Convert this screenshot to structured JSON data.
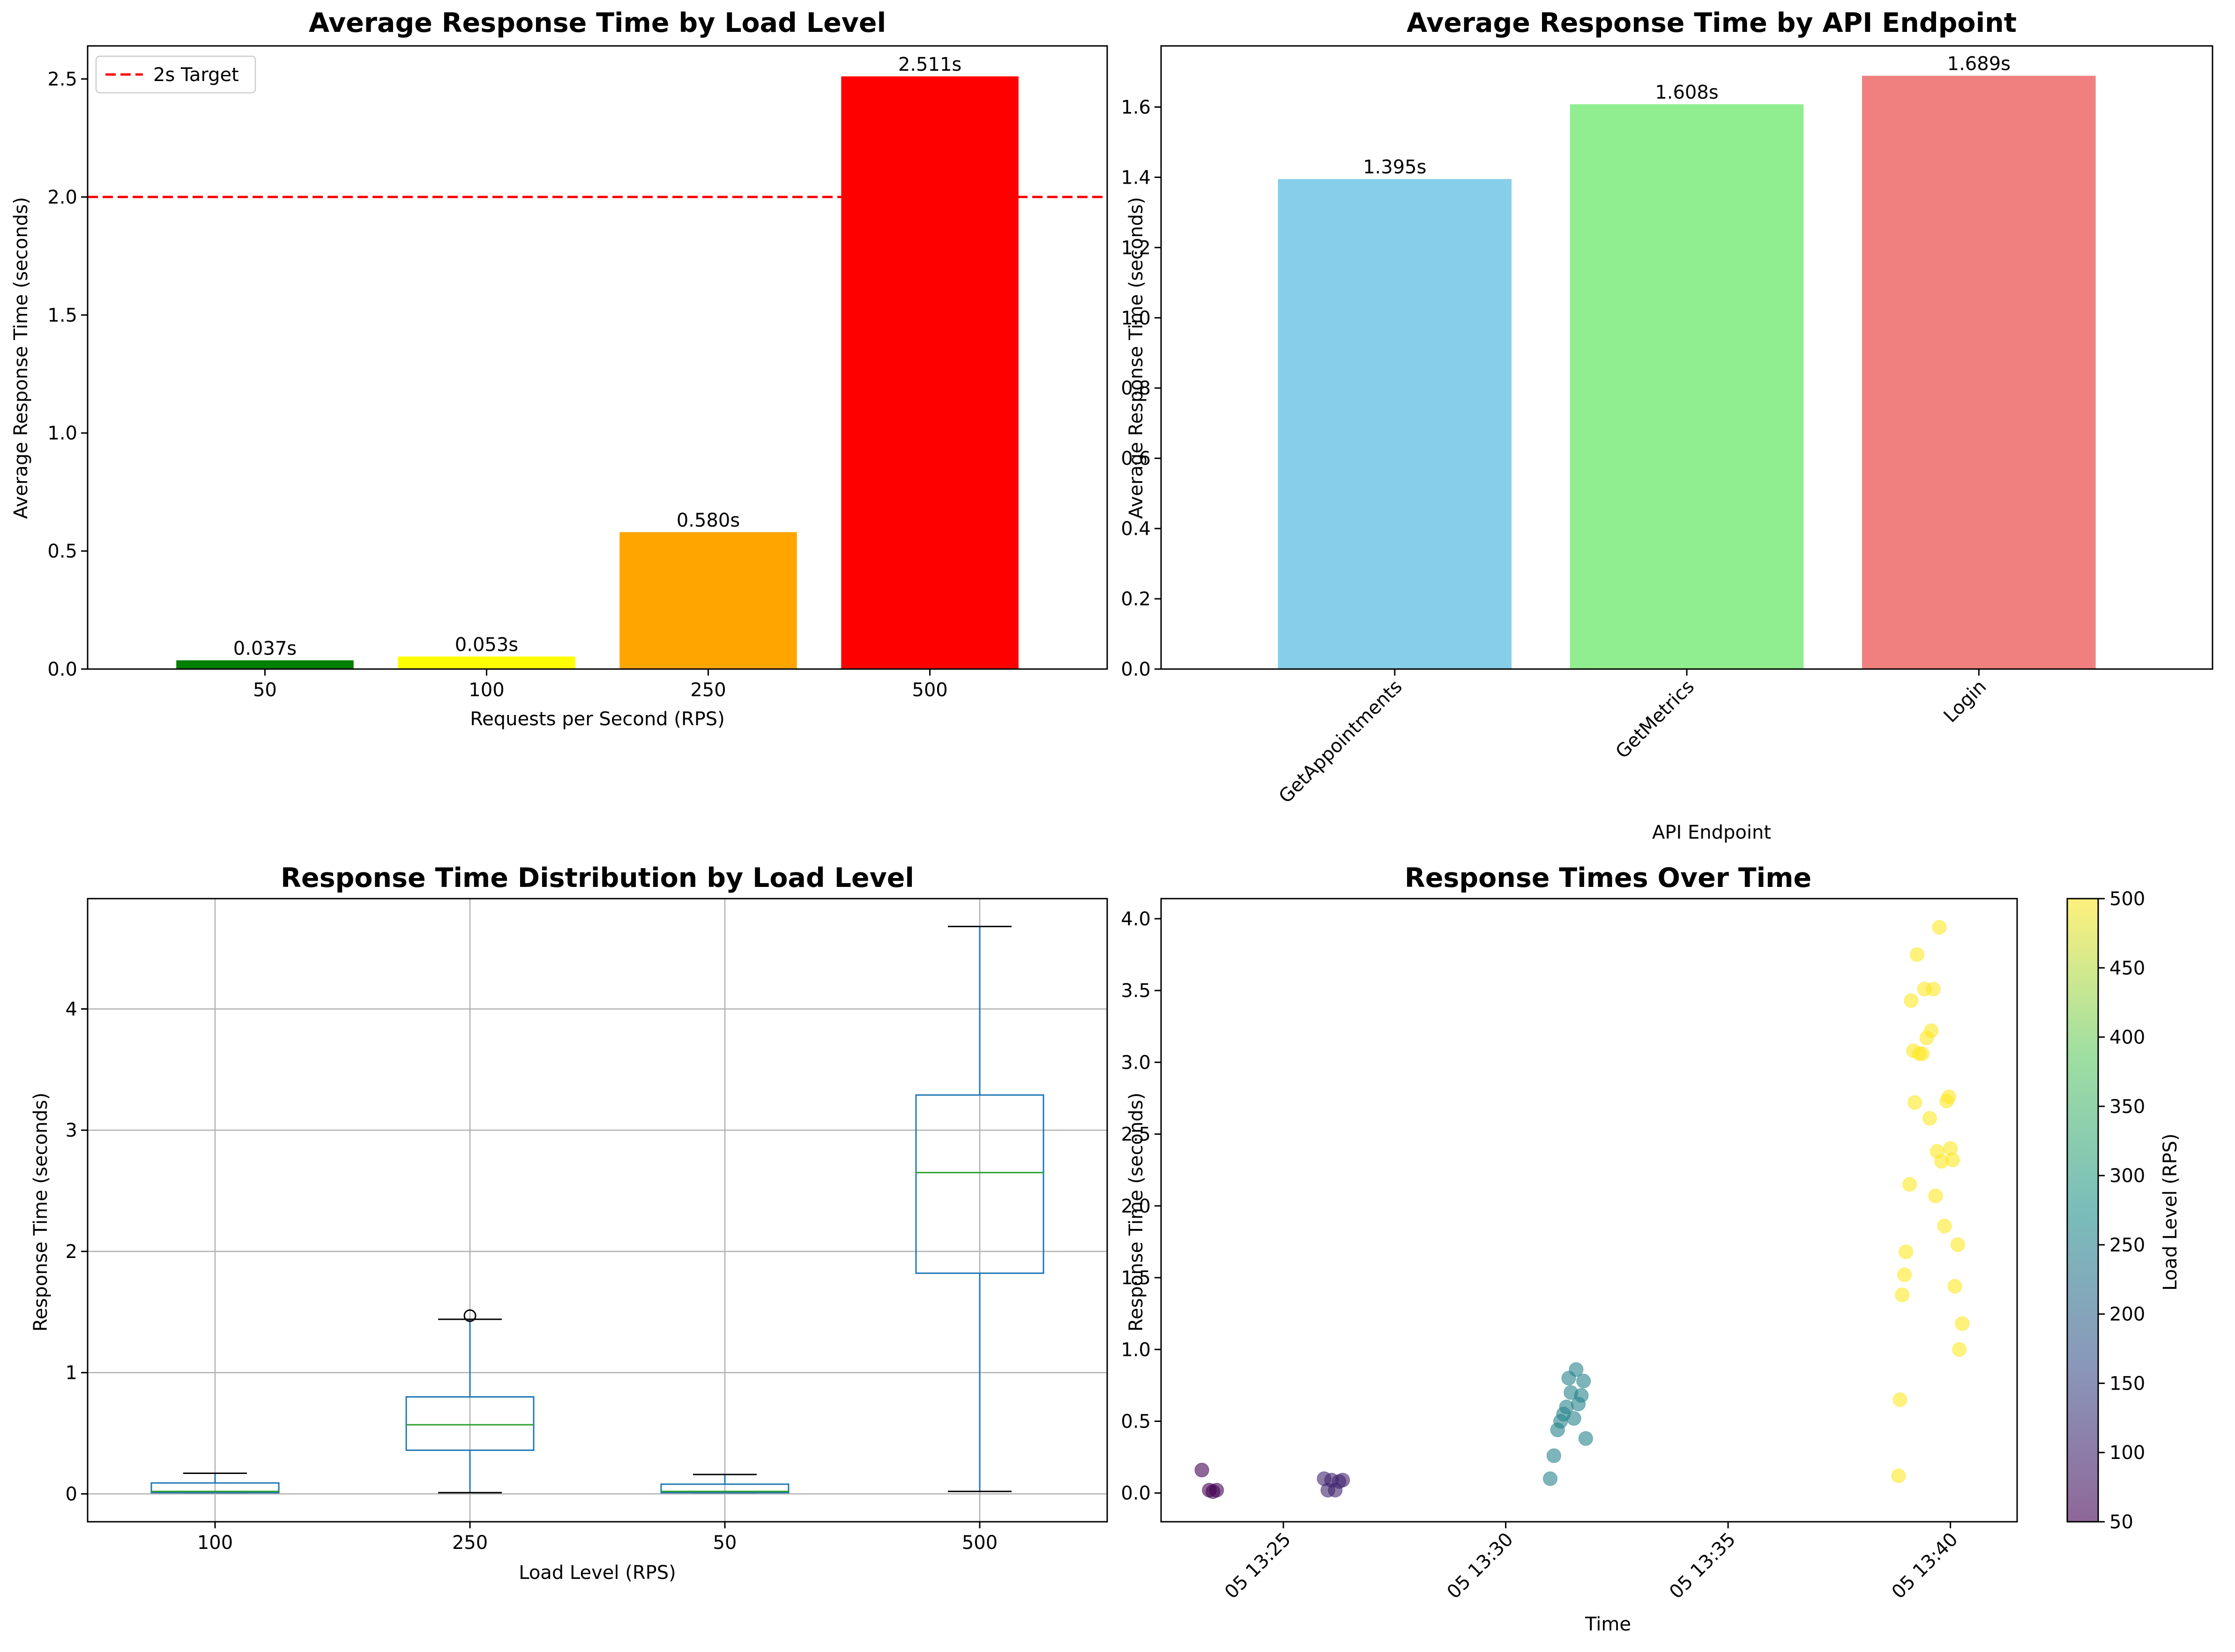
{
  "chart_data": [
    {
      "type": "bar",
      "title": "Average Response Time by Load Level",
      "xlabel": "Requests per Second (RPS)",
      "ylabel": "Average Response Time (seconds)",
      "categories": [
        "50",
        "100",
        "250",
        "500"
      ],
      "values": [
        0.037,
        0.053,
        0.58,
        2.511
      ],
      "value_labels": [
        "0.037s",
        "0.053s",
        "0.580s",
        "2.511s"
      ],
      "colors": [
        "#008000",
        "#ffff00",
        "#ffa500",
        "#ff0000"
      ],
      "ylim": [
        0,
        2.64
      ],
      "yticks": [
        "0.0",
        "0.5",
        "1.0",
        "1.5",
        "2.0",
        "2.5"
      ],
      "reference_line": {
        "value": 2.0,
        "label": "2s Target",
        "color": "#ff0000",
        "style": "dashed"
      },
      "legend_position": "top-left",
      "grid": false
    },
    {
      "type": "bar",
      "title": "Average Response Time by API Endpoint",
      "xlabel": "API Endpoint",
      "ylabel": "Average Response Time (seconds)",
      "categories": [
        "GetAppointments",
        "GetMetrics",
        "Login"
      ],
      "values": [
        1.395,
        1.608,
        1.689
      ],
      "value_labels": [
        "1.395s",
        "1.608s",
        "1.689s"
      ],
      "colors": [
        "#87ceeb",
        "#90ee90",
        "#f08080"
      ],
      "ylim": [
        0,
        1.774
      ],
      "yticks": [
        "0.0",
        "0.2",
        "0.4",
        "0.6",
        "0.8",
        "1.0",
        "1.2",
        "1.4",
        "1.6"
      ],
      "xtick_rotation": 45,
      "grid": false
    },
    {
      "type": "box",
      "title": "Response Time Distribution by Load Level",
      "xlabel": "Load Level (RPS)",
      "ylabel": "Response Time (seconds)",
      "categories": [
        "100",
        "250",
        "50",
        "500"
      ],
      "boxes": [
        {
          "whisker_low": 0.01,
          "q1": 0.01,
          "median": 0.02,
          "q3": 0.09,
          "whisker_high": 0.17,
          "outliers": []
        },
        {
          "whisker_low": 0.01,
          "q1": 0.36,
          "median": 0.57,
          "q3": 0.8,
          "whisker_high": 1.44,
          "outliers": [
            1.47
          ]
        },
        {
          "whisker_low": 0.01,
          "q1": 0.01,
          "median": 0.02,
          "q3": 0.08,
          "whisker_high": 0.16,
          "outliers": []
        },
        {
          "whisker_low": 0.02,
          "q1": 1.82,
          "median": 2.65,
          "q3": 3.29,
          "whisker_high": 4.68,
          "outliers": []
        }
      ],
      "ylim": [
        -0.23,
        4.91
      ],
      "yticks": [
        "0",
        "1",
        "2",
        "3",
        "4"
      ],
      "grid": true
    },
    {
      "type": "scatter",
      "title": "Response Times Over Time",
      "xlabel": "Time",
      "ylabel": "Response Time (seconds)",
      "xticks": [
        "05 13:25",
        "05 13:30",
        "05 13:35",
        "05 13:40"
      ],
      "yticks": [
        "0.0",
        "0.5",
        "1.0",
        "1.5",
        "2.0",
        "2.5",
        "3.0",
        "3.5",
        "4.0"
      ],
      "ylim": [
        -0.2,
        4.14
      ],
      "colorbar": {
        "label": "Load Level (RPS)",
        "min": 50,
        "max": 500,
        "ticks": [
          "50",
          "100",
          "150",
          "200",
          "250",
          "300",
          "350",
          "400",
          "450",
          "500"
        ],
        "colormap": "viridis"
      },
      "points": [
        {
          "t": "13:23:10",
          "y": 0.16,
          "load": 50
        },
        {
          "t": "13:23:20",
          "y": 0.02,
          "load": 50
        },
        {
          "t": "13:23:25",
          "y": 0.01,
          "load": 50
        },
        {
          "t": "13:23:30",
          "y": 0.02,
          "load": 50
        },
        {
          "t": "13:25:55",
          "y": 0.1,
          "load": 100
        },
        {
          "t": "13:26:00",
          "y": 0.02,
          "load": 100
        },
        {
          "t": "13:26:05",
          "y": 0.09,
          "load": 100
        },
        {
          "t": "13:26:10",
          "y": 0.02,
          "load": 100
        },
        {
          "t": "13:26:15",
          "y": 0.08,
          "load": 100
        },
        {
          "t": "13:26:20",
          "y": 0.09,
          "load": 100
        },
        {
          "t": "13:31:00",
          "y": 0.1,
          "load": 250
        },
        {
          "t": "13:31:05",
          "y": 0.26,
          "load": 250
        },
        {
          "t": "13:31:10",
          "y": 0.44,
          "load": 250
        },
        {
          "t": "13:31:14",
          "y": 0.5,
          "load": 250
        },
        {
          "t": "13:31:18",
          "y": 0.55,
          "load": 250
        },
        {
          "t": "13:31:22",
          "y": 0.6,
          "load": 250
        },
        {
          "t": "13:31:25",
          "y": 0.8,
          "load": 250
        },
        {
          "t": "13:31:28",
          "y": 0.7,
          "load": 250
        },
        {
          "t": "13:31:32",
          "y": 0.52,
          "load": 250
        },
        {
          "t": "13:31:35",
          "y": 0.86,
          "load": 250
        },
        {
          "t": "13:31:38",
          "y": 0.62,
          "load": 250
        },
        {
          "t": "13:31:42",
          "y": 0.68,
          "load": 250
        },
        {
          "t": "13:31:45",
          "y": 0.78,
          "load": 250
        },
        {
          "t": "13:31:48",
          "y": 0.38,
          "load": 250
        },
        {
          "t": "13:38:50",
          "y": 0.12,
          "load": 500
        },
        {
          "t": "13:38:52",
          "y": 0.65,
          "load": 500
        },
        {
          "t": "13:38:55",
          "y": 1.38,
          "load": 500
        },
        {
          "t": "13:38:58",
          "y": 1.52,
          "load": 500
        },
        {
          "t": "13:39:00",
          "y": 1.68,
          "load": 500
        },
        {
          "t": "13:39:05",
          "y": 2.15,
          "load": 500
        },
        {
          "t": "13:39:07",
          "y": 3.43,
          "load": 500
        },
        {
          "t": "13:39:10",
          "y": 3.08,
          "load": 500
        },
        {
          "t": "13:39:12",
          "y": 2.72,
          "load": 500
        },
        {
          "t": "13:39:15",
          "y": 3.75,
          "load": 500
        },
        {
          "t": "13:39:18",
          "y": 3.06,
          "load": 500
        },
        {
          "t": "13:39:22",
          "y": 3.06,
          "load": 500
        },
        {
          "t": "13:39:25",
          "y": 3.51,
          "load": 500
        },
        {
          "t": "13:39:28",
          "y": 3.17,
          "load": 500
        },
        {
          "t": "13:39:32",
          "y": 2.61,
          "load": 500
        },
        {
          "t": "13:39:34",
          "y": 3.22,
          "load": 500
        },
        {
          "t": "13:39:37",
          "y": 3.51,
          "load": 500
        },
        {
          "t": "13:39:40",
          "y": 2.07,
          "load": 500
        },
        {
          "t": "13:39:42",
          "y": 2.38,
          "load": 500
        },
        {
          "t": "13:39:45",
          "y": 3.94,
          "load": 500
        },
        {
          "t": "13:39:48",
          "y": 2.31,
          "load": 500
        },
        {
          "t": "13:39:52",
          "y": 1.86,
          "load": 500
        },
        {
          "t": "13:39:55",
          "y": 2.73,
          "load": 500
        },
        {
          "t": "13:39:58",
          "y": 2.76,
          "load": 500
        },
        {
          "t": "13:40:00",
          "y": 2.4,
          "load": 500
        },
        {
          "t": "13:40:03",
          "y": 2.32,
          "load": 500
        },
        {
          "t": "13:40:06",
          "y": 1.44,
          "load": 500
        },
        {
          "t": "13:40:10",
          "y": 1.73,
          "load": 500
        },
        {
          "t": "13:40:12",
          "y": 1.0,
          "load": 500
        },
        {
          "t": "13:40:16",
          "y": 1.18,
          "load": 500
        }
      ]
    }
  ]
}
